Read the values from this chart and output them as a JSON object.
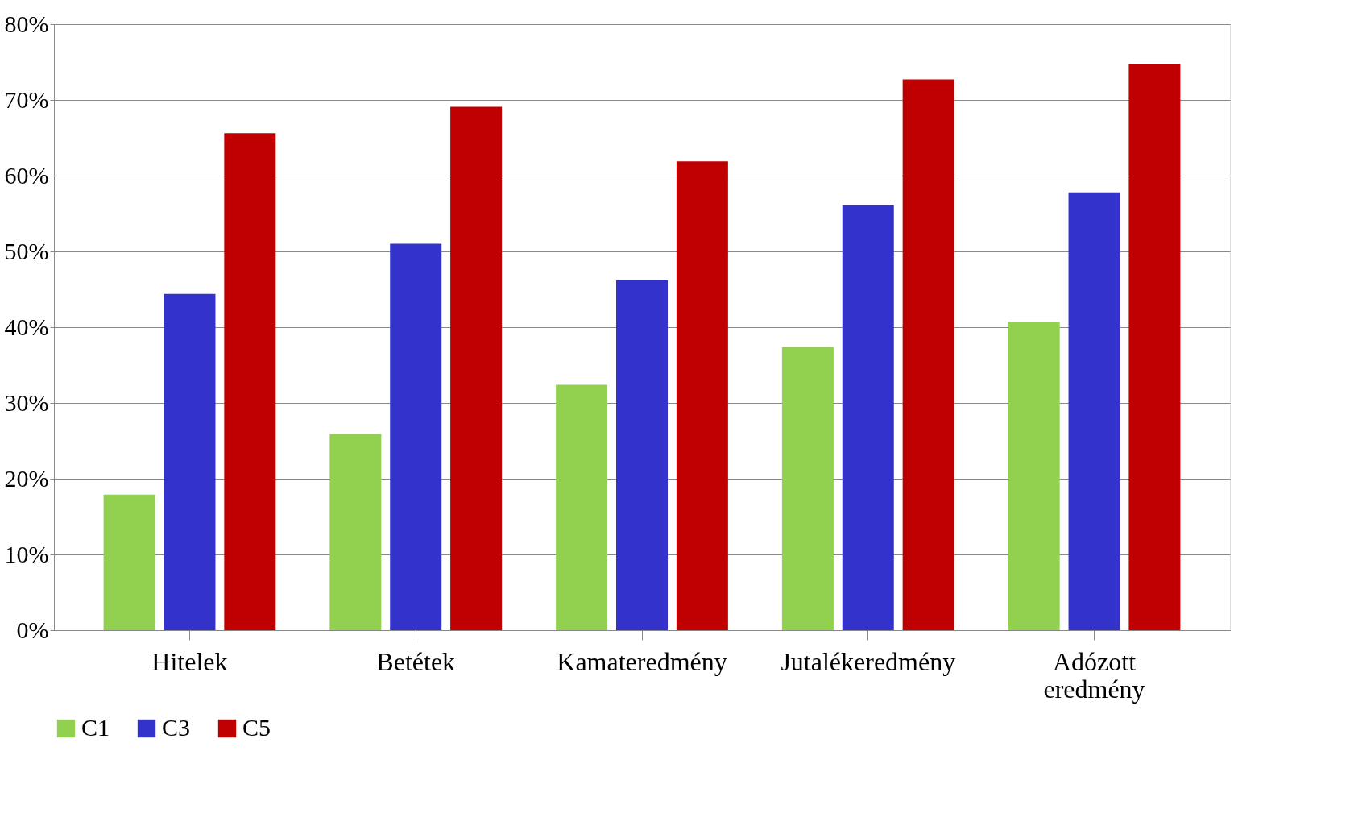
{
  "chart_data": {
    "type": "bar",
    "categories": [
      "Hitelek",
      "Betétek",
      "Kamateredmény",
      "Jutalékeredmény",
      "Adózott eredmény"
    ],
    "series": [
      {
        "name": "C1",
        "color": "#92d050",
        "values": [
          17.9,
          25.9,
          32.4,
          37.4,
          40.7
        ]
      },
      {
        "name": "C3",
        "color": "#3333cc",
        "values": [
          44.4,
          51.0,
          46.2,
          56.1,
          57.8
        ]
      },
      {
        "name": "C5",
        "color": "#c00000",
        "values": [
          65.6,
          69.1,
          61.9,
          72.7,
          74.7
        ]
      }
    ],
    "ylim": [
      0,
      80
    ],
    "yticks": [
      {
        "value": 0,
        "label": "0%"
      },
      {
        "value": 10,
        "label": "10%"
      },
      {
        "value": 20,
        "label": "20%"
      },
      {
        "value": 30,
        "label": "30%"
      },
      {
        "value": 40,
        "label": "40%"
      },
      {
        "value": 50,
        "label": "50%"
      },
      {
        "value": 60,
        "label": "60%"
      },
      {
        "value": 70,
        "label": "70%"
      },
      {
        "value": 80,
        "label": "80%"
      }
    ],
    "grid": "y",
    "legend": "bottom"
  }
}
